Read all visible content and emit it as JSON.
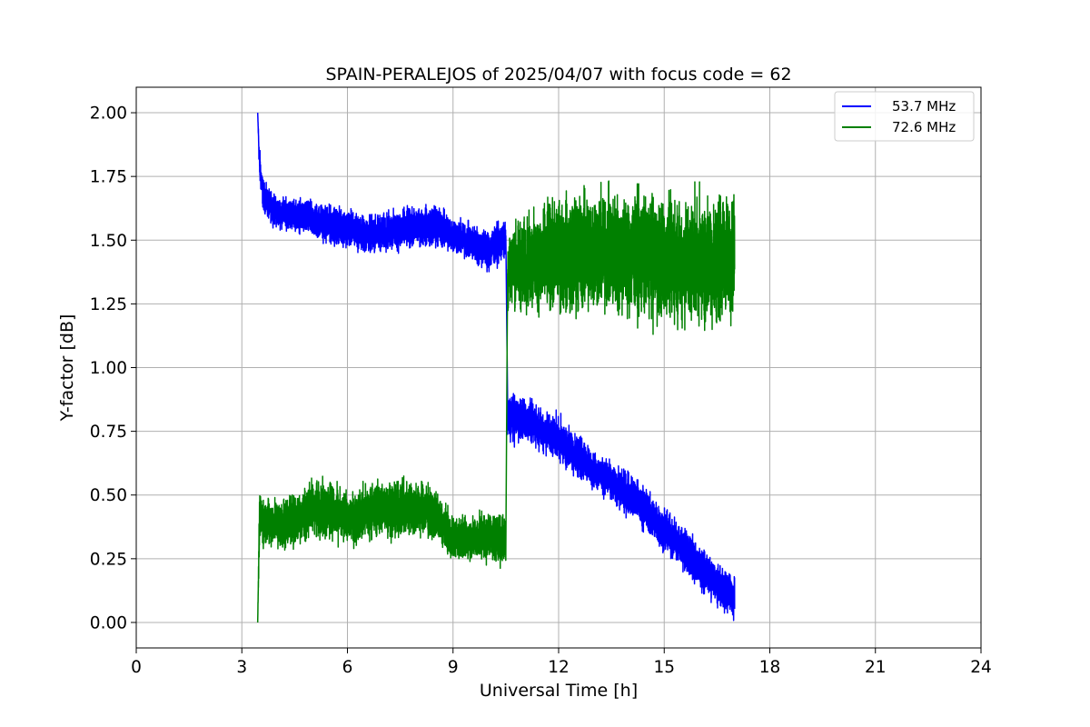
{
  "chart_data": {
    "type": "line",
    "title": "SPAIN-PERALEJOS of 2025/04/07 with focus code = 62",
    "xlabel": "Universal Time [h]",
    "ylabel": "Y-factor [dB]",
    "xlim": [
      0,
      24
    ],
    "ylim": [
      -0.1,
      2.1
    ],
    "xticks": [
      0,
      3,
      6,
      9,
      12,
      15,
      18,
      21,
      24
    ],
    "xtick_labels": [
      "0",
      "3",
      "6",
      "9",
      "12",
      "15",
      "18",
      "21",
      "24"
    ],
    "yticks": [
      0.0,
      0.25,
      0.5,
      0.75,
      1.0,
      1.25,
      1.5,
      1.75,
      2.0
    ],
    "ytick_labels": [
      "0.00",
      "0.25",
      "0.50",
      "0.75",
      "1.00",
      "1.25",
      "1.50",
      "1.75",
      "2.00"
    ],
    "grid": true,
    "legend_position": "top-right",
    "series": [
      {
        "name": "53.7 MHz",
        "color": "#0000ff",
        "segments": [
          {
            "x": [
              3.45,
              3.5,
              3.6,
              3.75,
              4.0,
              4.5,
              5.0,
              5.5,
              6.0,
              6.5,
              7.0,
              7.5,
              8.0,
              8.5,
              9.0,
              9.5,
              10.0,
              10.5
            ],
            "center": [
              2.0,
              1.8,
              1.68,
              1.64,
              1.61,
              1.6,
              1.58,
              1.56,
              1.55,
              1.52,
              1.53,
              1.54,
              1.55,
              1.56,
              1.52,
              1.49,
              1.46,
              1.5
            ],
            "spread": [
              0.0,
              0.06,
              0.05,
              0.05,
              0.05,
              0.05,
              0.06,
              0.06,
              0.06,
              0.06,
              0.06,
              0.07,
              0.06,
              0.07,
              0.06,
              0.06,
              0.07,
              0.06
            ]
          },
          {
            "x": [
              10.55,
              11.0,
              11.5,
              12.0,
              12.5,
              13.0,
              13.5,
              14.0,
              14.5,
              15.0,
              15.5,
              16.0,
              16.5,
              17.0
            ],
            "center": [
              0.8,
              0.8,
              0.76,
              0.72,
              0.66,
              0.6,
              0.55,
              0.5,
              0.44,
              0.36,
              0.3,
              0.22,
              0.15,
              0.1
            ],
            "spread": [
              0.08,
              0.07,
              0.07,
              0.07,
              0.07,
              0.06,
              0.06,
              0.07,
              0.07,
              0.07,
              0.07,
              0.07,
              0.06,
              0.07
            ]
          }
        ]
      },
      {
        "name": "72.6 MHz",
        "color": "#008000",
        "segments": [
          {
            "x": [
              3.45,
              3.5,
              4.0,
              4.5,
              5.0,
              5.5,
              6.0,
              6.5,
              7.0,
              7.5,
              8.0,
              8.5,
              9.0,
              9.5,
              10.0,
              10.5
            ],
            "center": [
              0.0,
              0.4,
              0.39,
              0.4,
              0.45,
              0.44,
              0.4,
              0.43,
              0.45,
              0.44,
              0.45,
              0.42,
              0.33,
              0.33,
              0.34,
              0.32
            ],
            "spread": [
              0.0,
              0.08,
              0.08,
              0.09,
              0.09,
              0.09,
              0.08,
              0.09,
              0.09,
              0.09,
              0.09,
              0.08,
              0.07,
              0.07,
              0.08,
              0.08
            ]
          },
          {
            "x": [
              10.55,
              11.0,
              11.5,
              12.0,
              12.5,
              13.0,
              13.5,
              14.0,
              14.5,
              15.0,
              15.5,
              16.0,
              16.5,
              17.0
            ],
            "center": [
              1.4,
              1.4,
              1.42,
              1.44,
              1.45,
              1.46,
              1.45,
              1.44,
              1.43,
              1.42,
              1.42,
              1.42,
              1.42,
              1.45
            ],
            "spread": [
              0.14,
              0.15,
              0.17,
              0.18,
              0.2,
              0.2,
              0.2,
              0.2,
              0.2,
              0.2,
              0.2,
              0.2,
              0.2,
              0.2
            ]
          }
        ]
      }
    ]
  }
}
